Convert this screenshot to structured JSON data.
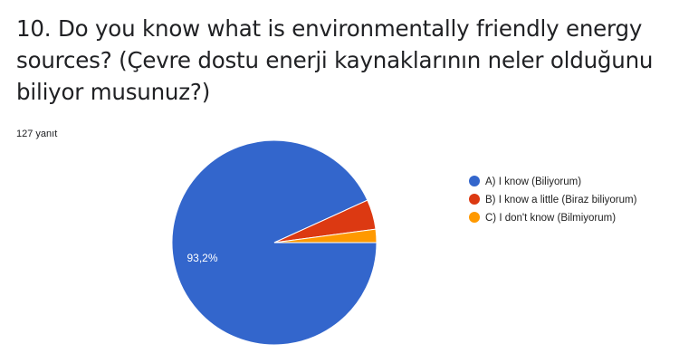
{
  "question": {
    "title": "10. Do you know what is environmentally friendly energy sources? (Çevre dostu enerji kaynaklarının neler olduğunu biliyor musunuz?)",
    "response_count": "127 yanıt"
  },
  "chart_data": {
    "type": "pie",
    "categories": [
      "A) I know (Biliyorum)",
      "B) I know a little (Biraz biliyorum)",
      "C) I don't know (Bilmiyorum)"
    ],
    "values": [
      93.2,
      4.7,
      2.1
    ],
    "unit": "%",
    "data_labels": [
      "93,2%",
      "",
      ""
    ],
    "colors": [
      "#3366cc",
      "#dc3912",
      "#ff9900"
    ],
    "legend_placement": "right"
  }
}
